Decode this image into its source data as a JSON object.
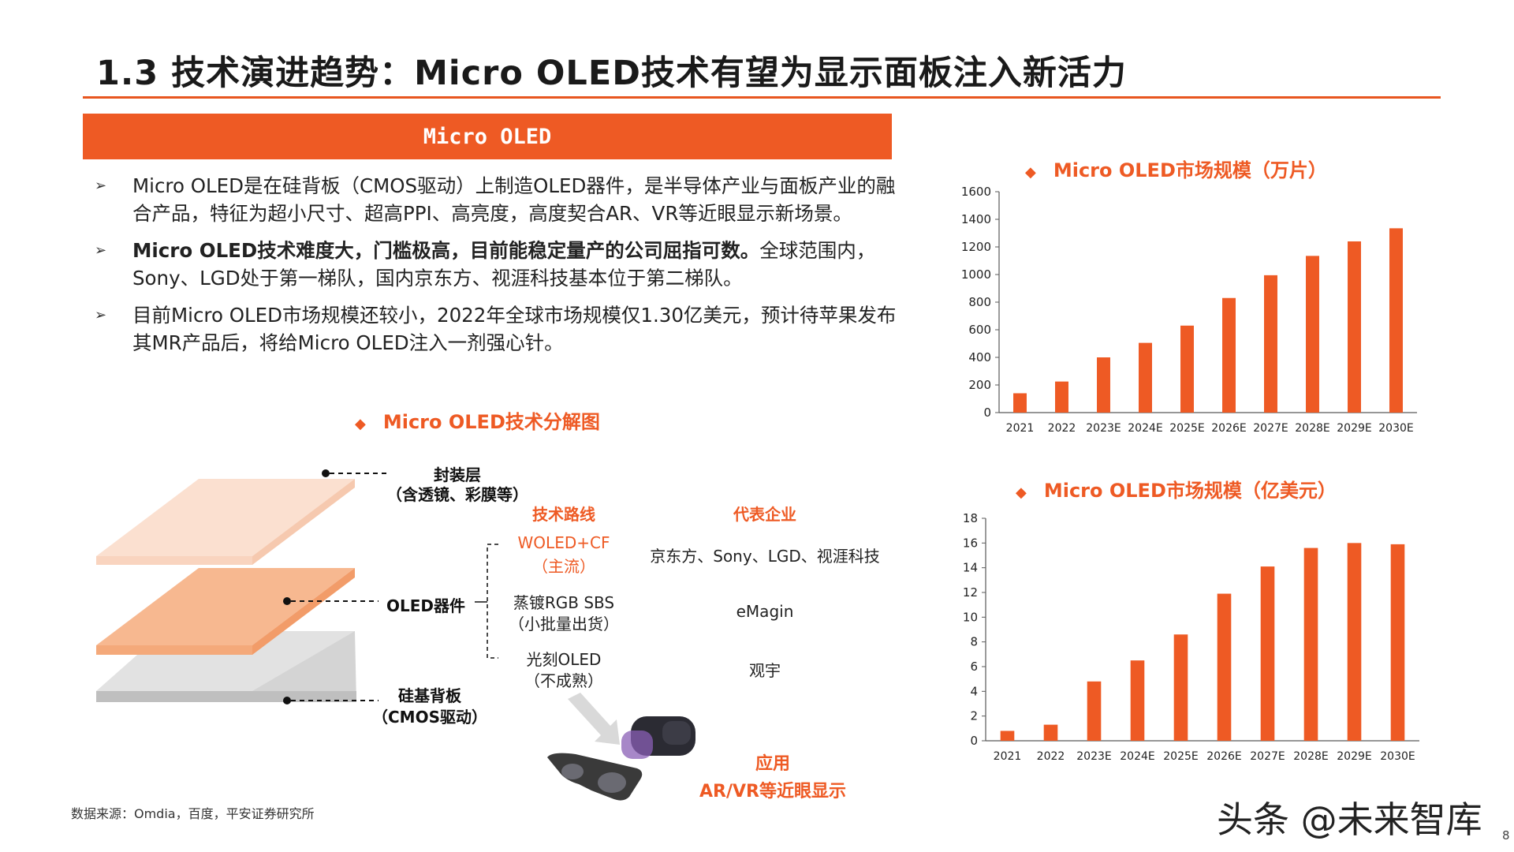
{
  "page": {
    "title": "1.3 技术演进趋势：Micro OLED技术有望为显示面板注入新活力",
    "section_banner": "Micro OLED",
    "footnote": "数据来源：Omdia，百度，平安证券研究所",
    "watermark": "头条 @未来智库",
    "page_number": "8"
  },
  "bullets": [
    {
      "plain": "Micro OLED是在硅背板（CMOS驱动）上制造OLED器件，是半导体产业与面板产业的融合产品，特征为超小尺寸、超高PPI、高亮度，高度契合AR、VR等近眼显示新场景。",
      "bold": ""
    },
    {
      "bold": "Micro OLED技术难度大，门槛极高，目前能稳定量产的公司屈指可数。",
      "plain": "全球范围内，Sony、LGD处于第一梯队，国内京东方、视涯科技基本位于第二梯队。"
    },
    {
      "plain": "目前Micro OLED市场规模还较小，2022年全球市场规模仅1.30亿美元，预计待苹果发布其MR产品后，将给Micro OLED注入一剂强心针。",
      "bold": ""
    }
  ],
  "diagram": {
    "title": "Micro OLED技术分解图",
    "layer_top_label": "封装层",
    "layer_top_sub": "（含透镜、彩膜等）",
    "layer_mid_label": "OLED器件",
    "layer_bot_label": "硅基背板",
    "layer_bot_sub": "（CMOS驱动）",
    "col_route": "技术路线",
    "col_company": "代表企业",
    "rows": [
      {
        "route": "WOLED+CF",
        "route_sub": "（主流）",
        "company": "京东方、Sony、LGD、视涯科技"
      },
      {
        "route": "蒸镀RGB SBS",
        "route_sub": "（小批量出货）",
        "company": "eMagin"
      },
      {
        "route": "光刻OLED",
        "route_sub": "（不成熟）",
        "company": "观宇"
      }
    ],
    "app_label": "应用",
    "app_text": "AR/VR等近眼显示"
  },
  "colors": {
    "accent": "#ee5a24",
    "bar": "#ee5a24"
  },
  "chart_data": [
    {
      "type": "bar",
      "title": "Micro OLED市场规模（万片）",
      "categories": [
        "2021",
        "2022",
        "2023E",
        "2024E",
        "2025E",
        "2026E",
        "2027E",
        "2028E",
        "2029E",
        "2030E"
      ],
      "values": [
        140,
        225,
        400,
        505,
        630,
        830,
        995,
        1135,
        1240,
        1335
      ],
      "ylim": [
        0,
        1600
      ],
      "yticks": [
        0,
        200,
        400,
        600,
        800,
        1000,
        1200,
        1400,
        1600
      ],
      "xlabel": "",
      "ylabel": ""
    },
    {
      "type": "bar",
      "title": "Micro OLED市场规模（亿美元）",
      "categories": [
        "2021",
        "2022",
        "2023E",
        "2024E",
        "2025E",
        "2026E",
        "2027E",
        "2028E",
        "2029E",
        "2030E"
      ],
      "values": [
        0.8,
        1.3,
        4.8,
        6.5,
        8.6,
        11.9,
        14.1,
        15.6,
        16.0,
        15.9
      ],
      "ylim": [
        0,
        18
      ],
      "yticks": [
        0,
        2,
        4,
        6,
        8,
        10,
        12,
        14,
        16,
        18
      ],
      "xlabel": "",
      "ylabel": ""
    }
  ]
}
